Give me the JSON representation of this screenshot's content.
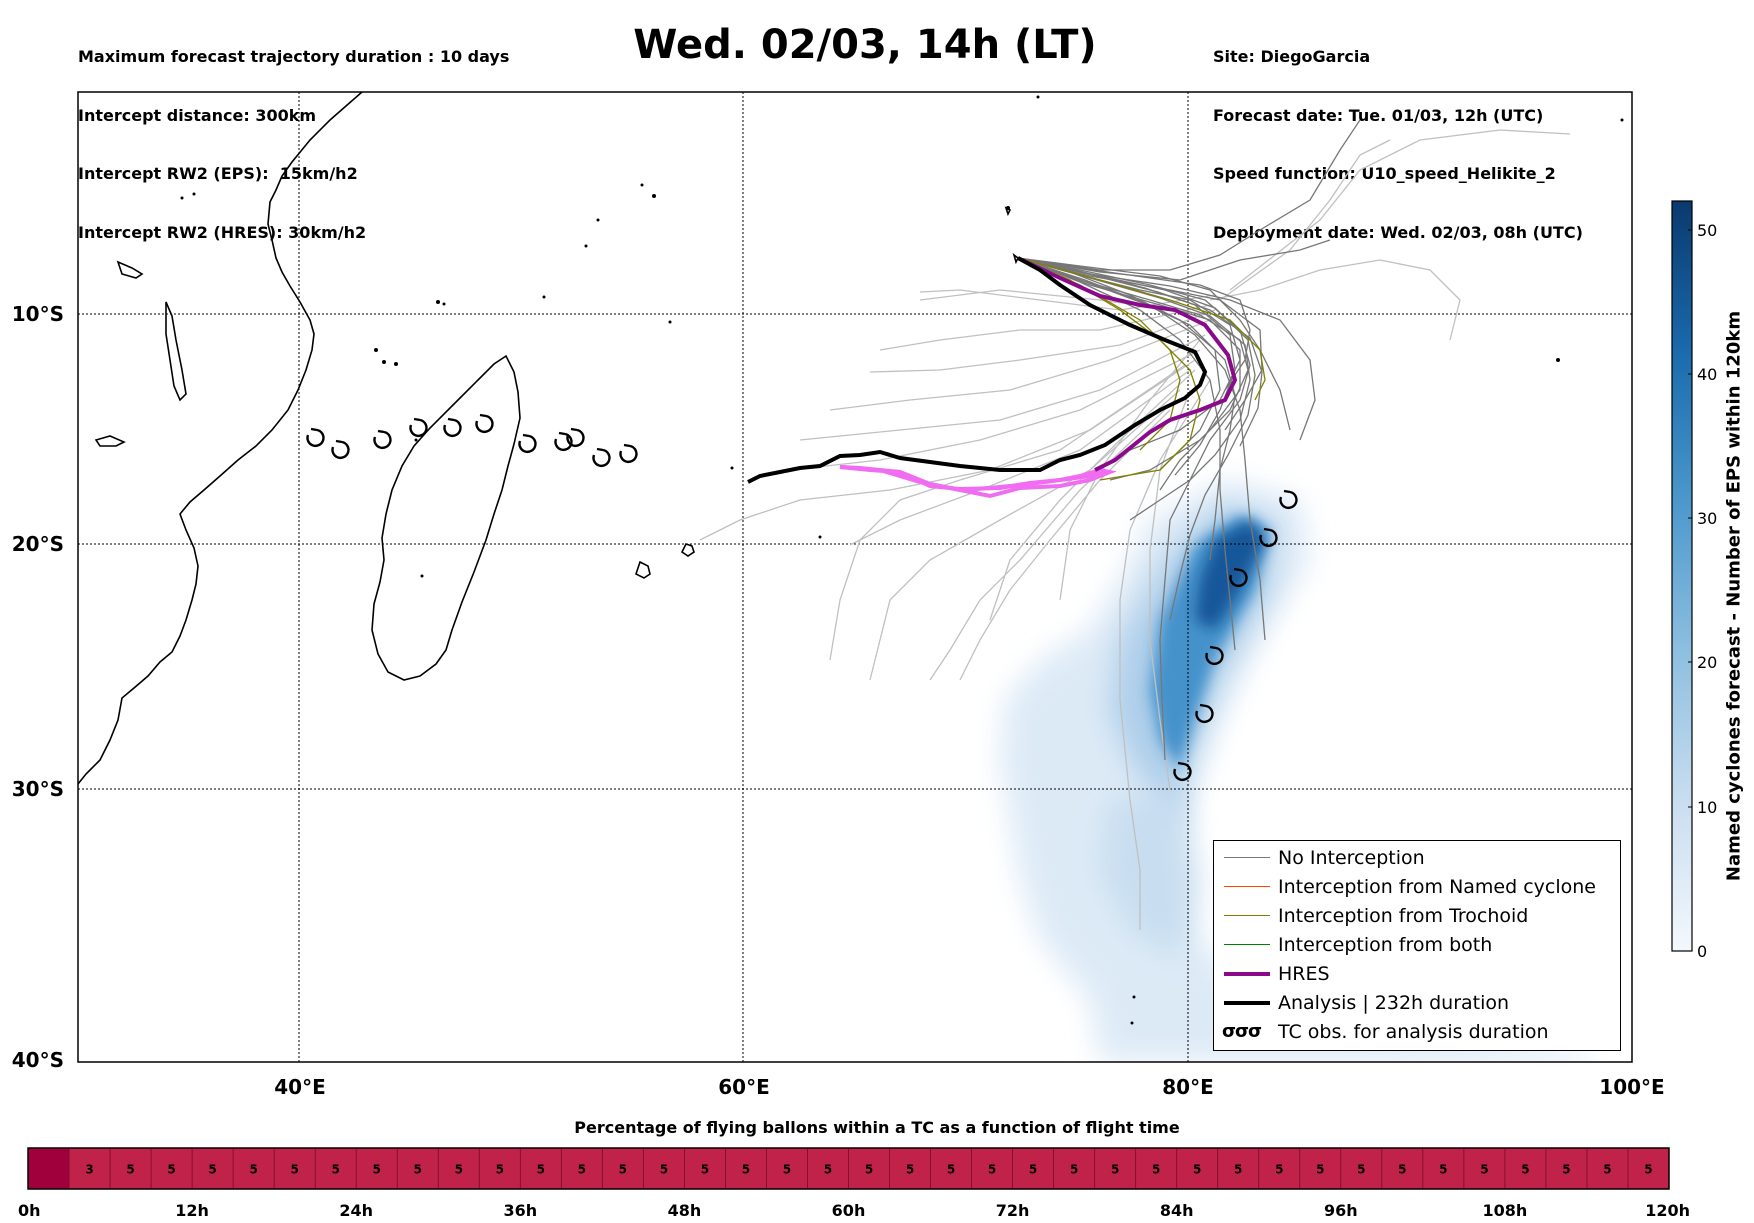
{
  "header": {
    "left_lines": [
      "Maximum forecast trajectory duration : 10 days",
      "Intercept distance: 300km",
      "Intercept RW2 (EPS):  15km/h2",
      "Intercept RW2 (HRES): 30km/h2"
    ],
    "title": "Wed. 02/03, 14h (LT)",
    "right_lines": [
      "Site: DiegoGarcia",
      "Forecast date: Tue. 01/03, 12h (UTC)",
      "Speed function: U10_speed_Helikite_2",
      "Deployment date: Wed. 02/03, 08h (UTC)"
    ]
  },
  "map": {
    "lat_labels": [
      "10°S",
      "20°S",
      "30°S",
      "40°S"
    ],
    "lon_labels": [
      "40°E",
      "60°E",
      "80°E",
      "100°E"
    ],
    "colors": {
      "ens": "#777777",
      "ens_light": "#c0c0c0",
      "hres": "#8b0a8b",
      "hres_ext": "#f06cf0",
      "analysis": "#000000",
      "trochoid": "#808000",
      "named": "#ff4500",
      "both": "#008000"
    }
  },
  "colorbar": {
    "title": "Named cyclones forecast - Number of EPS within 120km",
    "ticks": [
      "0",
      "10",
      "20",
      "30",
      "40",
      "50"
    ],
    "min_color": "#eef5fc",
    "max_color": "#0a3a6e"
  },
  "legend": {
    "items": [
      {
        "label": "No Interception",
        "color": "#777777",
        "width": 1
      },
      {
        "label": "Interception from Named cyclone",
        "color": "#ff4500",
        "width": 1
      },
      {
        "label": "Interception from Trochoid",
        "color": "#808000",
        "width": 1
      },
      {
        "label": "Interception from both",
        "color": "#008000",
        "width": 1
      },
      {
        "label": "HRES",
        "color": "#8b0a8b",
        "width": 4
      },
      {
        "label": "Analysis | 232h duration",
        "color": "#000000",
        "width": 4
      }
    ],
    "tc_obs_label": "TC obs. for analysis duration",
    "tc_symbol": "σσσ"
  },
  "timeline": {
    "title": "Percentage of flying ballons within a TC as a function of flight time",
    "values": [
      "",
      "3",
      "5",
      "5",
      "5",
      "5",
      "5",
      "5",
      "5",
      "5",
      "5",
      "5",
      "5",
      "5",
      "5",
      "5",
      "5",
      "5",
      "5",
      "5",
      "5",
      "5",
      "5",
      "5",
      "5",
      "5",
      "5",
      "5",
      "5",
      "5",
      "5",
      "5",
      "5",
      "5",
      "5",
      "5",
      "5",
      "5",
      "5",
      "5"
    ],
    "hours": [
      "0h",
      "12h",
      "24h",
      "36h",
      "48h",
      "60h",
      "72h",
      "84h",
      "96h",
      "108h",
      "120h"
    ],
    "color_main": "#c0224a",
    "color_first": "#a0003c"
  }
}
